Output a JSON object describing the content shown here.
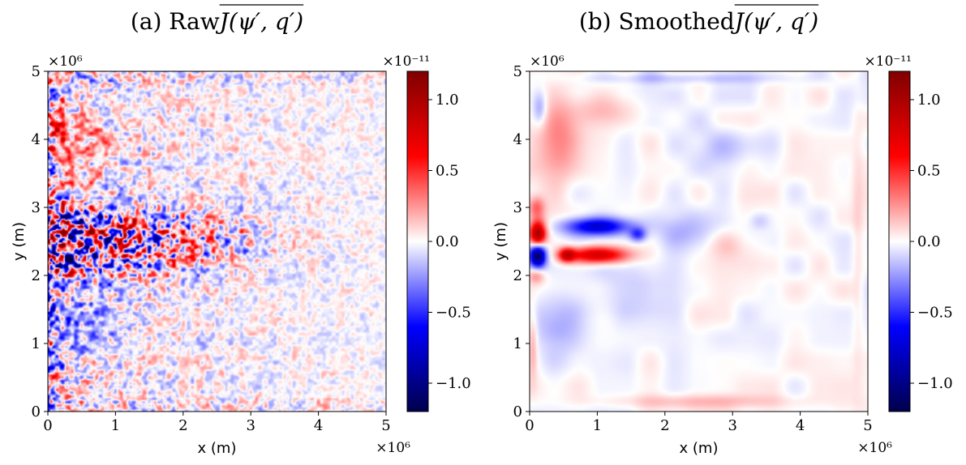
{
  "chart_data": [
    {
      "type": "heatmap",
      "title": "(a) Raw J(ψ′, q′)",
      "title_prefix": "(a) Raw ",
      "title_expr": "J(ψ′, q′)",
      "xlabel": "x (m)",
      "ylabel": "y (m)",
      "x_multiplier": "×10⁶",
      "y_multiplier": "×10⁶",
      "xlim": [
        0,
        5
      ],
      "ylim": [
        0,
        5
      ],
      "xticks": [
        "0",
        "1",
        "2",
        "3",
        "4",
        "5"
      ],
      "yticks": [
        "0",
        "1",
        "2",
        "3",
        "4",
        "5"
      ],
      "colorbar": {
        "multiplier": "×10⁻¹¹",
        "range": [
          -1.2,
          1.2
        ],
        "ticks": [
          "1.0",
          "0.5",
          "0.0",
          "−0.5",
          "−1.0"
        ],
        "tick_values": [
          1.0,
          0.5,
          0.0,
          -0.5,
          -1.0
        ],
        "colormap": "seismic"
      },
      "field_description": "noisy eddy field; strong alternating red/blue band near y≈2.0–3.0 decaying eastward from x=0 to x≈3; western boundary strip of high amplitude; weaker noise elsewhere fading toward x=5"
    },
    {
      "type": "heatmap",
      "title": "(b) Smoothed J(ψ′, q′)",
      "title_prefix": "(b) Smoothed ",
      "title_expr": "J(ψ′, q′)",
      "xlabel": "x (m)",
      "ylabel": "y (m)",
      "x_multiplier": "×10⁶",
      "y_multiplier": "×10⁶",
      "xlim": [
        0,
        5
      ],
      "ylim": [
        0,
        5
      ],
      "xticks": [
        "0",
        "1",
        "2",
        "3",
        "4",
        "5"
      ],
      "yticks": [
        "0",
        "1",
        "2",
        "3",
        "4",
        "5"
      ],
      "colorbar": {
        "multiplier": "×10⁻¹¹",
        "range": [
          -1.2,
          1.2
        ],
        "ticks": [
          "1.0",
          "0.5",
          "0.0",
          "−0.5",
          "−1.0"
        ],
        "tick_values": [
          1.0,
          0.5,
          0.0,
          -0.5,
          -1.0
        ],
        "colormap": "seismic"
      },
      "features": [
        {
          "x": 0.12,
          "y": 2.6,
          "value": 1.1,
          "sx": 0.12,
          "sy": 0.2
        },
        {
          "x": 0.12,
          "y": 2.3,
          "value": -1.2,
          "sx": 0.12,
          "sy": 0.18
        },
        {
          "x": 1.0,
          "y": 2.3,
          "value": 0.85,
          "sx": 0.45,
          "sy": 0.12
        },
        {
          "x": 0.55,
          "y": 2.3,
          "value": 0.7,
          "sx": 0.12,
          "sy": 0.1
        },
        {
          "x": 1.0,
          "y": 2.72,
          "value": -0.75,
          "sx": 0.5,
          "sy": 0.13
        },
        {
          "x": 1.6,
          "y": 2.6,
          "value": -0.45,
          "sx": 0.12,
          "sy": 0.1
        },
        {
          "x": 0.1,
          "y": 3.0,
          "value": 0.35,
          "sx": 0.12,
          "sy": 0.15
        },
        {
          "x": 0.1,
          "y": 2.0,
          "value": 0.3,
          "sx": 0.12,
          "sy": 0.12
        },
        {
          "x": 0.45,
          "y": 4.0,
          "value": 0.28,
          "sx": 0.35,
          "sy": 0.55
        },
        {
          "x": 0.4,
          "y": 1.3,
          "value": -0.22,
          "sx": 0.35,
          "sy": 0.45
        },
        {
          "x": 0.15,
          "y": 4.45,
          "value": -0.25,
          "sx": 0.1,
          "sy": 0.25
        },
        {
          "x": 1.1,
          "y": 4.4,
          "value": 0.18,
          "sx": 0.5,
          "sy": 0.25
        },
        {
          "x": 2.3,
          "y": 2.7,
          "value": -0.18,
          "sx": 0.5,
          "sy": 0.3
        },
        {
          "x": 3.0,
          "y": 2.45,
          "value": 0.12,
          "sx": 0.4,
          "sy": 0.2
        },
        {
          "x": 3.4,
          "y": 2.8,
          "value": -0.12,
          "sx": 0.15,
          "sy": 0.12
        },
        {
          "x": 1.5,
          "y": 1.8,
          "value": -0.15,
          "sx": 0.6,
          "sy": 0.3
        },
        {
          "x": 2.5,
          "y": 0.15,
          "value": 0.15,
          "sx": 1.5,
          "sy": 0.1
        },
        {
          "x": 2.3,
          "y": 4.9,
          "value": -0.15,
          "sx": 1.5,
          "sy": 0.08
        },
        {
          "x": 0.05,
          "y": 1.0,
          "value": 0.2,
          "sx": 0.06,
          "sy": 0.5
        },
        {
          "x": 2.8,
          "y": 3.8,
          "value": -0.12,
          "sx": 0.5,
          "sy": 0.4
        },
        {
          "x": 4.85,
          "y": 2.5,
          "value": 0.08,
          "sx": 0.08,
          "sy": 2.0
        }
      ]
    }
  ]
}
